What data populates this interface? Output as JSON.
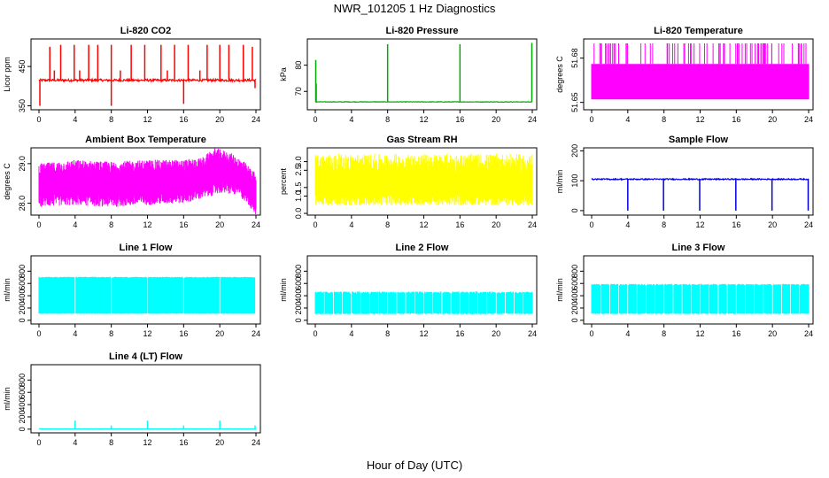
{
  "figure": {
    "title": "NWR_101205  1 Hz Diagnostics",
    "xlabel": "Hour of Day (UTC)"
  },
  "chart_data": [
    {
      "type": "line",
      "title": "Li-820 CO2",
      "ylabel": "Licor ppm",
      "color": "#ff0000",
      "xlim": [
        0,
        24
      ],
      "ylim": [
        340,
        520
      ],
      "xticks": [
        0,
        4,
        8,
        12,
        16,
        20,
        24
      ],
      "yticks": [
        350,
        450
      ],
      "baseline": 415,
      "noise": 3,
      "spikes": [
        {
          "x": 0.1,
          "y": 350
        },
        {
          "x": 1.2,
          "y": 500
        },
        {
          "x": 1.7,
          "y": 440
        },
        {
          "x": 2.4,
          "y": 505
        },
        {
          "x": 3.9,
          "y": 505
        },
        {
          "x": 4.5,
          "y": 440
        },
        {
          "x": 5.5,
          "y": 505
        },
        {
          "x": 6.5,
          "y": 505
        },
        {
          "x": 8.0,
          "y": 350
        },
        {
          "x": 8.0,
          "y": 505
        },
        {
          "x": 9.0,
          "y": 440
        },
        {
          "x": 10.2,
          "y": 505
        },
        {
          "x": 11.7,
          "y": 505
        },
        {
          "x": 13.5,
          "y": 505
        },
        {
          "x": 14.2,
          "y": 440
        },
        {
          "x": 15.0,
          "y": 505
        },
        {
          "x": 16.0,
          "y": 355
        },
        {
          "x": 16.5,
          "y": 505
        },
        {
          "x": 17.8,
          "y": 440
        },
        {
          "x": 18.6,
          "y": 505
        },
        {
          "x": 20.0,
          "y": 505
        },
        {
          "x": 21.0,
          "y": 505
        },
        {
          "x": 22.6,
          "y": 505
        },
        {
          "x": 23.6,
          "y": 500
        },
        {
          "x": 23.9,
          "y": 395
        }
      ]
    },
    {
      "type": "line",
      "title": "Li-820 Pressure",
      "ylabel": "kPa",
      "color": "#00aa00",
      "xlim": [
        0,
        24
      ],
      "ylim": [
        63,
        90
      ],
      "xticks": [
        0,
        4,
        8,
        12,
        16,
        20,
        24
      ],
      "yticks": [
        70,
        80
      ],
      "baseline": 66,
      "noise": 0.1,
      "spikes": [
        {
          "x": 0.05,
          "y": 82
        },
        {
          "x": 0.1,
          "y": 73
        },
        {
          "x": 8.0,
          "y": 88
        },
        {
          "x": 16.0,
          "y": 88
        },
        {
          "x": 23.95,
          "y": 88.5
        }
      ]
    },
    {
      "type": "band",
      "title": "Li-820 Temperature",
      "ylabel": "degrees C",
      "color": "#ff00ff",
      "xlim": [
        0,
        24
      ],
      "ylim": [
        51.645,
        51.693
      ],
      "xticks": [
        0,
        4,
        8,
        12,
        16,
        20,
        24
      ],
      "yticks": [
        51.65,
        51.68
      ],
      "band_low": 51.652,
      "band_high": 51.676,
      "spike_top": 51.69,
      "spike_count": 80
    },
    {
      "type": "band",
      "title": "Ambient Box Temperature",
      "ylabel": "degrees C",
      "color": "#ff00ff",
      "xlim": [
        0,
        24
      ],
      "ylim": [
        27.7,
        29.4
      ],
      "xticks": [
        0,
        4,
        8,
        12,
        16,
        20,
        24
      ],
      "yticks": [
        28.0,
        29.0
      ],
      "band_low_series": [
        {
          "x": 0,
          "y": 28.05
        },
        {
          "x": 4,
          "y": 28.1
        },
        {
          "x": 8,
          "y": 28.05
        },
        {
          "x": 12,
          "y": 28.1
        },
        {
          "x": 16,
          "y": 28.15
        },
        {
          "x": 18,
          "y": 28.25
        },
        {
          "x": 20,
          "y": 28.4
        },
        {
          "x": 22,
          "y": 28.35
        },
        {
          "x": 23,
          "y": 28.15
        },
        {
          "x": 24,
          "y": 27.85
        }
      ],
      "band_high_series": [
        {
          "x": 0,
          "y": 28.85
        },
        {
          "x": 4,
          "y": 28.95
        },
        {
          "x": 8,
          "y": 28.9
        },
        {
          "x": 12,
          "y": 28.95
        },
        {
          "x": 16,
          "y": 28.95
        },
        {
          "x": 18,
          "y": 29.0
        },
        {
          "x": 19.5,
          "y": 29.25
        },
        {
          "x": 21,
          "y": 29.15
        },
        {
          "x": 22.5,
          "y": 28.95
        },
        {
          "x": 24,
          "y": 28.6
        }
      ],
      "jitter": 0.15
    },
    {
      "type": "band",
      "title": "Gas Stream RH",
      "ylabel": "percent",
      "color": "#ffff00",
      "xlim": [
        0,
        24
      ],
      "ylim": [
        -0.1,
        3.8
      ],
      "xticks": [
        0,
        4,
        8,
        12,
        16,
        20,
        24
      ],
      "yticks": [
        0.0,
        1.0,
        1.5,
        2.5,
        3.0
      ],
      "band_low": 0.8,
      "band_high": 2.9,
      "jitter": 0.55
    },
    {
      "type": "line",
      "title": "Sample Flow",
      "ylabel": "ml/min",
      "color": "#0000dd",
      "xlim": [
        0,
        24
      ],
      "ylim": [
        -15,
        210
      ],
      "xticks": [
        0,
        4,
        8,
        12,
        16,
        20,
        24
      ],
      "yticks": [
        0,
        100,
        200
      ],
      "baseline": 105,
      "noise": 2,
      "spikes": [
        {
          "x": 4.0,
          "y": 0
        },
        {
          "x": 7.95,
          "y": 0
        },
        {
          "x": 11.95,
          "y": 0
        },
        {
          "x": 15.95,
          "y": 0
        },
        {
          "x": 19.95,
          "y": 0
        },
        {
          "x": 23.95,
          "y": 0
        }
      ]
    },
    {
      "type": "band",
      "title": "Line 1 Flow",
      "ylabel": "ml/min",
      "color": "#00ffff",
      "xlim": [
        0,
        24
      ],
      "ylim": [
        -60,
        1050
      ],
      "xticks": [
        0,
        4,
        8,
        12,
        16,
        20,
        24
      ],
      "yticks": [
        0,
        200,
        400,
        600,
        800
      ],
      "band_low": 110,
      "band_high": 700,
      "jitter": 8,
      "gaps": [
        4.0,
        8.0,
        12.0,
        16.0,
        20.0,
        23.95
      ]
    },
    {
      "type": "band",
      "title": "Line 2 Flow",
      "ylabel": "ml/min",
      "color": "#00ffff",
      "xlim": [
        0,
        24
      ],
      "ylim": [
        -60,
        1050
      ],
      "xticks": [
        0,
        4,
        8,
        12,
        16,
        20,
        24
      ],
      "yticks": [
        0,
        200,
        400,
        600,
        800
      ],
      "band_low": 110,
      "band_high": 450,
      "jitter": 18,
      "gaps": [
        1.0,
        2.0,
        3.0,
        4.0,
        5.0,
        6.0,
        7.0,
        8.0,
        9.0,
        10.0,
        11.0,
        12.0,
        13.0,
        14.0,
        15.0,
        16.0,
        17.0,
        18.0,
        19.0,
        20.0,
        21.0,
        22.0,
        23.0
      ]
    },
    {
      "type": "band",
      "title": "Line 3 Flow",
      "ylabel": "ml/min",
      "color": "#00ffff",
      "xlim": [
        0,
        24
      ],
      "ylim": [
        -60,
        1050
      ],
      "xticks": [
        0,
        4,
        8,
        12,
        16,
        20,
        24
      ],
      "yticks": [
        0,
        200,
        400,
        600,
        800
      ],
      "band_low": 110,
      "band_high": 580,
      "jitter": 12,
      "gaps": [
        1.0,
        2.0,
        3.0,
        4.0,
        5.0,
        6.0,
        7.0,
        8.0,
        9.0,
        10.0,
        11.0,
        12.0,
        13.0,
        14.0,
        15.0,
        16.0,
        17.0,
        18.0,
        19.0,
        20.0,
        21.0,
        22.0,
        23.0
      ]
    },
    {
      "type": "line",
      "title": "Line 4 (LT) Flow",
      "ylabel": "ml/min",
      "color": "#00ffff",
      "xlim": [
        0,
        24
      ],
      "ylim": [
        -60,
        1050
      ],
      "xticks": [
        0,
        4,
        8,
        12,
        16,
        20,
        24
      ],
      "yticks": [
        0,
        200,
        400,
        600,
        800
      ],
      "baseline": 5,
      "noise": 2,
      "spikes": [
        {
          "x": 4.0,
          "y": 140
        },
        {
          "x": 8.0,
          "y": 60
        },
        {
          "x": 12.0,
          "y": 140
        },
        {
          "x": 16.0,
          "y": 60
        },
        {
          "x": 20.0,
          "y": 140
        },
        {
          "x": 23.9,
          "y": 60
        }
      ]
    }
  ]
}
